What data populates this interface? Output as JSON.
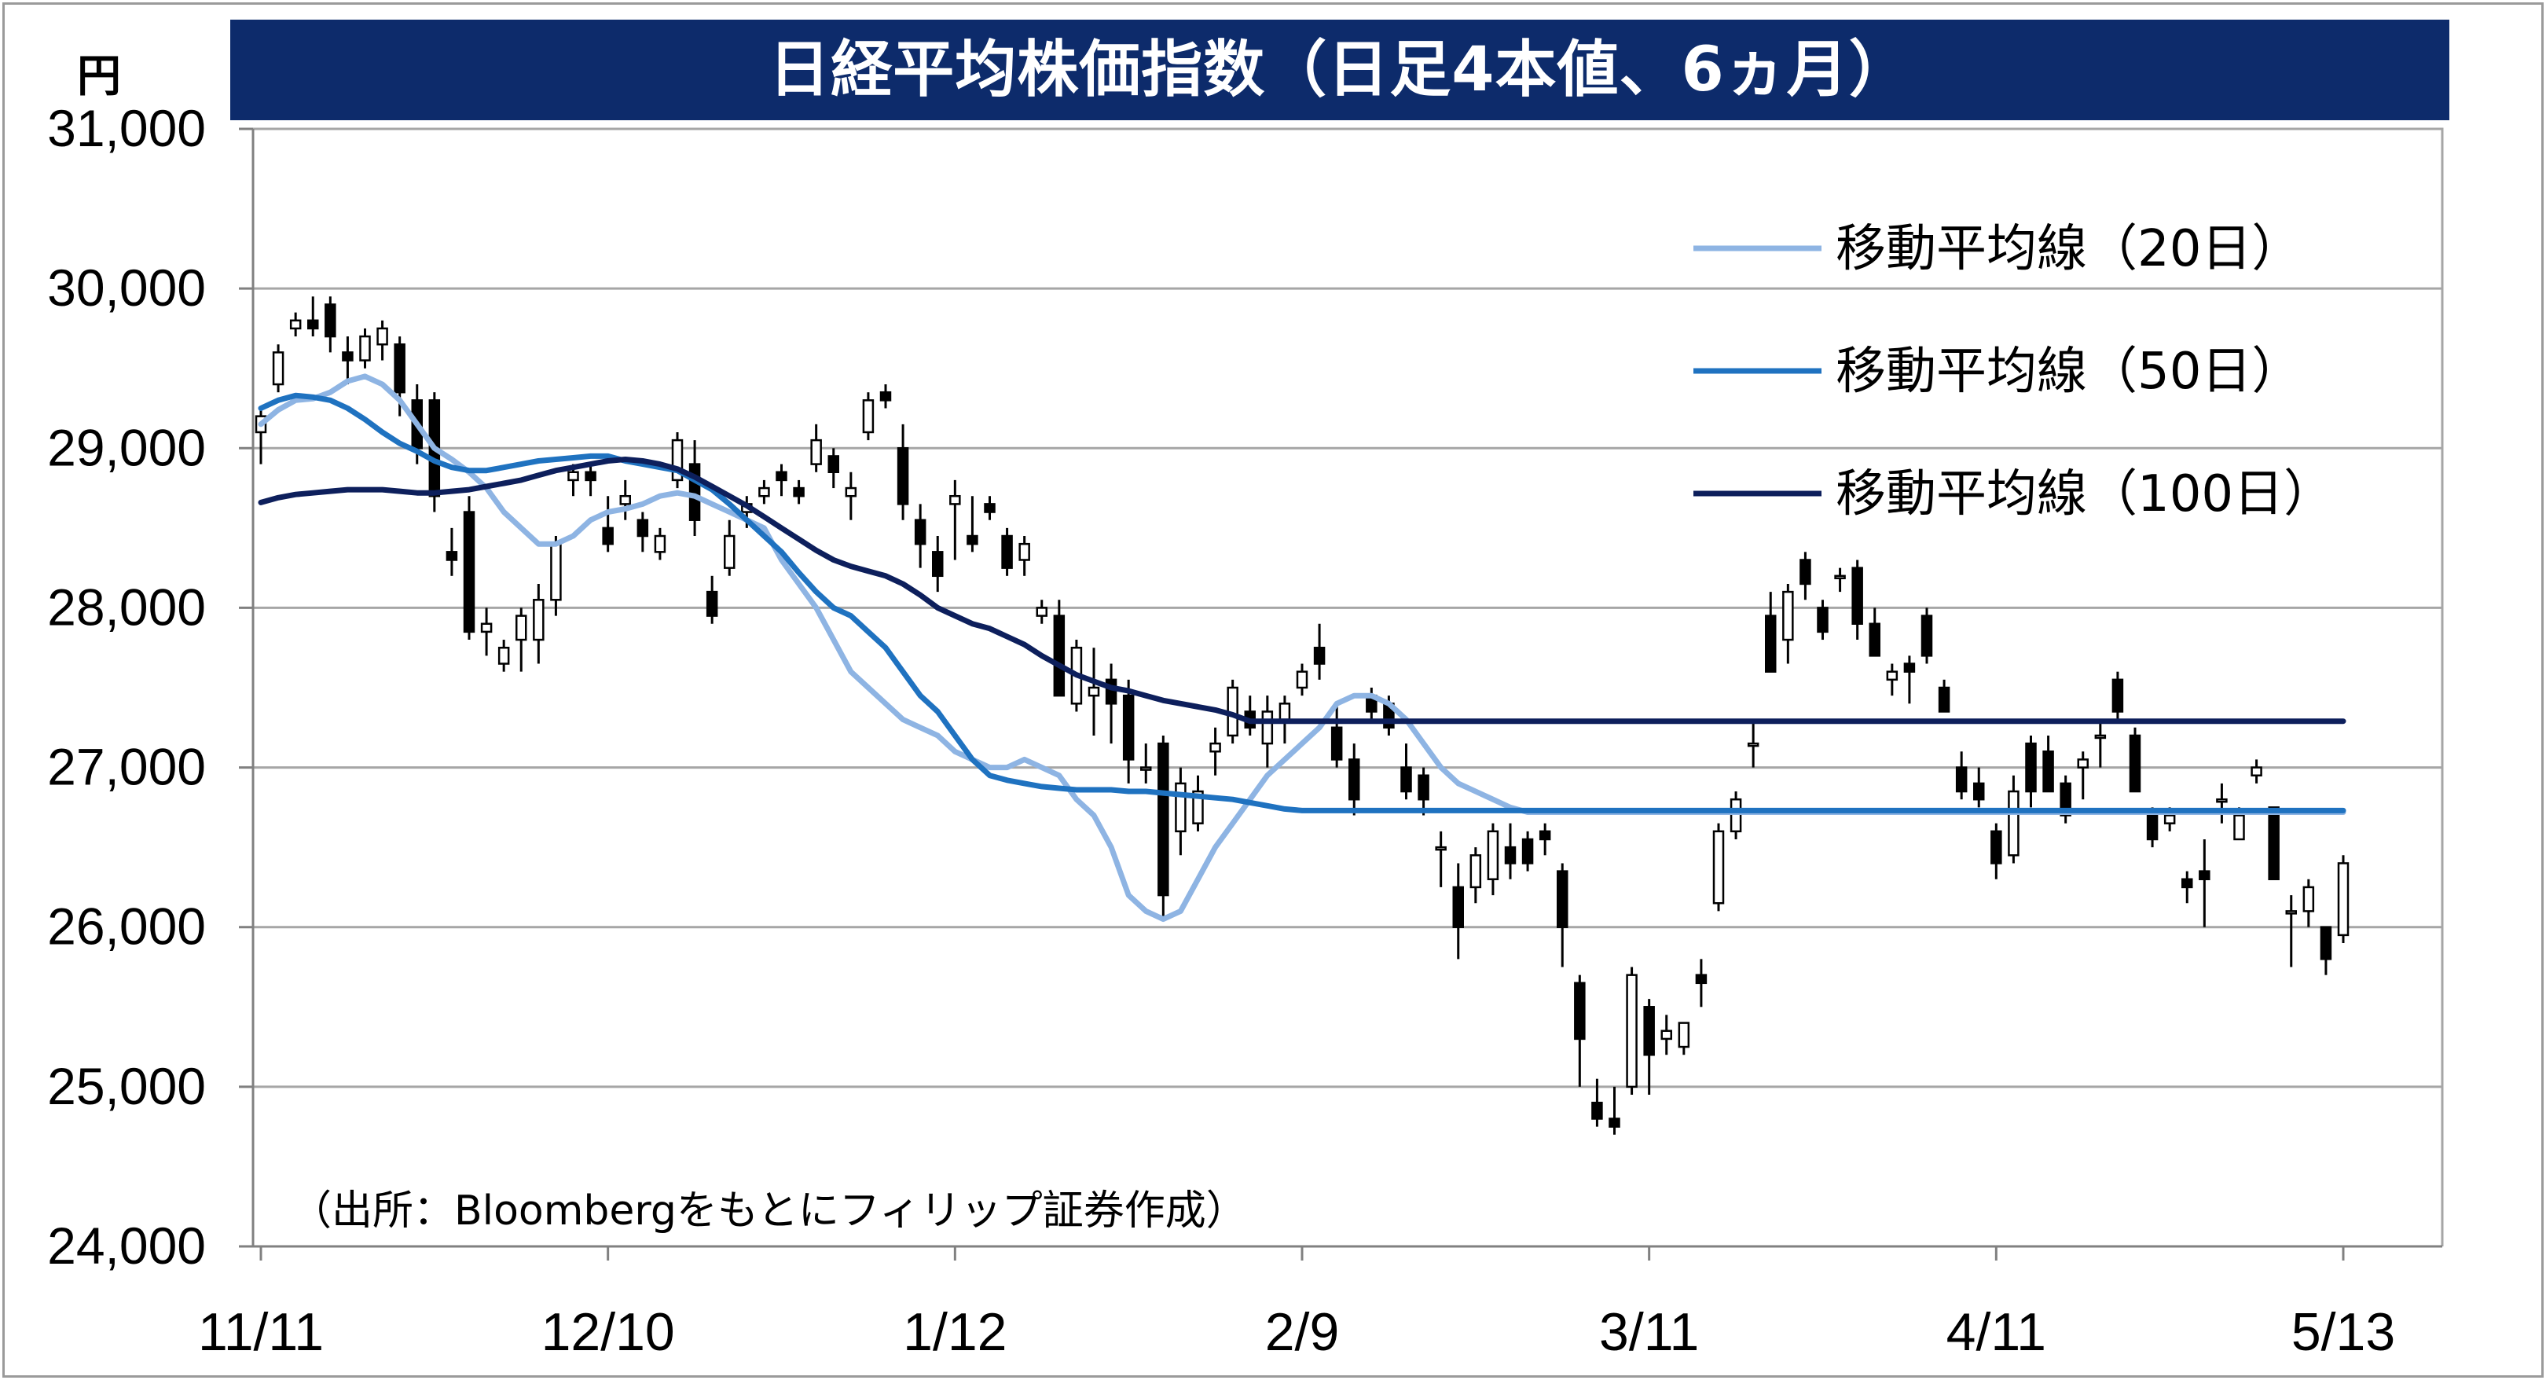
{
  "title": "日経平均株価指数（日足4本値、6ヵ月）",
  "y_unit": "円",
  "source": "（出所：Bloombergをもとにフィリップ証券作成）",
  "chart_data": {
    "type": "candlestick",
    "title": "日経平均株価指数（日足4本値、6ヵ月）",
    "ylabel": "円",
    "ylim": [
      24000,
      31000
    ],
    "yticks": [
      "31,000",
      "30,000",
      "29,000",
      "28,000",
      "27,000",
      "26,000",
      "25,000",
      "24,000"
    ],
    "ytick_values": [
      31000,
      30000,
      29000,
      28000,
      27000,
      26000,
      25000,
      24000
    ],
    "xticks": [
      "11/11",
      "12/10",
      "1/12",
      "2/9",
      "3/11",
      "4/11",
      "5/13"
    ],
    "xtick_indices": [
      0,
      20,
      40,
      60,
      80,
      100,
      120
    ],
    "grid": true,
    "legend_position": "top-right",
    "colors": {
      "up": "#ffffff",
      "down": "#000000",
      "grid": "#a6a6a6",
      "title_bg": "#0d2b6b"
    },
    "series": [
      {
        "name": "移動平均線（20日）",
        "color": "#8eb4e3",
        "values": [
          29150,
          29240,
          29300,
          29310,
          29350,
          29420,
          29450,
          29400,
          29300,
          29150,
          29000,
          28930,
          28850,
          28750,
          28600,
          28500,
          28400,
          28400,
          28450,
          28550,
          28600,
          28620,
          28650,
          28700,
          28720,
          28700,
          28650,
          28600,
          28550,
          28500,
          28300,
          28150,
          28000,
          27800,
          27600,
          27500,
          27400,
          27300,
          27250,
          27200,
          27100,
          27050,
          27000,
          27000,
          27050,
          27000,
          26950,
          26800,
          26700,
          26500,
          26200,
          26100,
          26050,
          26100,
          26300,
          26500,
          26650,
          26800,
          26950,
          27050,
          27150,
          27250,
          27400,
          27450,
          27450,
          27400,
          27300,
          27150,
          27000,
          26900,
          26850,
          26800,
          26750,
          26720,
          26720,
          26720,
          26720,
          26720,
          26720,
          26720,
          26720,
          26720,
          26720,
          26720,
          26720,
          26720,
          26720,
          26720,
          26720,
          26720,
          26720,
          26720,
          26720,
          26720,
          26720,
          26720,
          26720,
          26720,
          26720,
          26720,
          26720,
          26720,
          26720,
          26720,
          26720,
          26720,
          26720,
          26720,
          26720,
          26720,
          26720,
          26720,
          26720,
          26720,
          26720,
          26720,
          26720,
          26720,
          26720,
          26720,
          26720
        ]
      },
      {
        "name": "移動平均線（50日）",
        "color": "#1f72c0",
        "values": [
          29250,
          29300,
          29330,
          29320,
          29300,
          29250,
          29180,
          29100,
          29030,
          28980,
          28920,
          28880,
          28860,
          28860,
          28880,
          28900,
          28920,
          28930,
          28940,
          28950,
          28950,
          28920,
          28900,
          28880,
          28860,
          28800,
          28740,
          28650,
          28550,
          28450,
          28350,
          28220,
          28100,
          28000,
          27950,
          27850,
          27750,
          27600,
          27450,
          27350,
          27200,
          27050,
          26950,
          26920,
          26900,
          26880,
          26870,
          26860,
          26860,
          26860,
          26850,
          26850,
          26840,
          26830,
          26820,
          26810,
          26800,
          26780,
          26760,
          26740,
          26730,
          26730,
          26730,
          26730,
          26730,
          26730,
          26730,
          26730,
          26730,
          26730,
          26730,
          26730,
          26730,
          26730,
          26730,
          26730,
          26730,
          26730,
          26730,
          26730,
          26730,
          26730,
          26730,
          26730,
          26730,
          26730,
          26730,
          26730,
          26730,
          26730,
          26730,
          26730,
          26730,
          26730,
          26730,
          26730,
          26730,
          26730,
          26730,
          26730,
          26730,
          26730,
          26730,
          26730,
          26730,
          26730,
          26730,
          26730,
          26730,
          26730,
          26730,
          26730,
          26730,
          26730,
          26730,
          26730,
          26730,
          26730,
          26730,
          26730,
          26730
        ]
      },
      {
        "name": "移動平均線（100日）",
        "color": "#0d1f5c",
        "values": [
          28660,
          28690,
          28710,
          28720,
          28730,
          28740,
          28740,
          28740,
          28730,
          28720,
          28720,
          28730,
          28740,
          28760,
          28780,
          28800,
          28830,
          28860,
          28880,
          28900,
          28920,
          28930,
          28920,
          28900,
          28870,
          28820,
          28760,
          28700,
          28640,
          28570,
          28500,
          28430,
          28360,
          28300,
          28260,
          28230,
          28200,
          28150,
          28080,
          28000,
          27950,
          27900,
          27870,
          27820,
          27770,
          27700,
          27640,
          27580,
          27540,
          27500,
          27480,
          27450,
          27420,
          27400,
          27380,
          27360,
          27330,
          27290,
          27290,
          27290,
          27290,
          27290,
          27290,
          27290,
          27290,
          27290,
          27290,
          27290,
          27290,
          27290,
          27290,
          27290,
          27290,
          27290,
          27290,
          27290,
          27290,
          27290,
          27290,
          27290,
          27290,
          27290,
          27290,
          27290,
          27290,
          27290,
          27290,
          27290,
          27290,
          27290,
          27290,
          27290,
          27290,
          27290,
          27290,
          27290,
          27290,
          27290,
          27290,
          27290,
          27290,
          27290,
          27290,
          27290,
          27290,
          27290,
          27290,
          27290,
          27290,
          27290,
          27290,
          27290,
          27290,
          27290,
          27290,
          27290,
          27290,
          27290,
          27290,
          27290,
          27290
        ]
      }
    ],
    "candles": [
      [
        29100,
        29250,
        28900,
        29200
      ],
      [
        29400,
        29650,
        29350,
        29600
      ],
      [
        29750,
        29850,
        29700,
        29800
      ],
      [
        29800,
        29950,
        29700,
        29750
      ],
      [
        29900,
        29950,
        29600,
        29700
      ],
      [
        29600,
        29700,
        29400,
        29550
      ],
      [
        29550,
        29750,
        29500,
        29700
      ],
      [
        29650,
        29800,
        29550,
        29750
      ],
      [
        29650,
        29700,
        29200,
        29350
      ],
      [
        29300,
        29400,
        28900,
        29000
      ],
      [
        29300,
        29350,
        28600,
        28700
      ],
      [
        28350,
        28500,
        28200,
        28300
      ],
      [
        28600,
        28700,
        27800,
        27850
      ],
      [
        27850,
        28000,
        27700,
        27900
      ],
      [
        27650,
        27800,
        27600,
        27750
      ],
      [
        27800,
        28000,
        27600,
        27950
      ],
      [
        27800,
        28150,
        27650,
        28050
      ],
      [
        28050,
        28450,
        27950,
        28400
      ],
      [
        28800,
        28900,
        28700,
        28850
      ],
      [
        28850,
        28900,
        28700,
        28800
      ],
      [
        28500,
        28700,
        28350,
        28400
      ],
      [
        28650,
        28800,
        28550,
        28700
      ],
      [
        28550,
        28600,
        28350,
        28450
      ],
      [
        28350,
        28500,
        28300,
        28450
      ],
      [
        28800,
        29100,
        28750,
        29050
      ],
      [
        28900,
        29050,
        28450,
        28550
      ],
      [
        28100,
        28200,
        27900,
        27950
      ],
      [
        28250,
        28550,
        28200,
        28450
      ],
      [
        28600,
        28700,
        28500,
        28650
      ],
      [
        28700,
        28800,
        28650,
        28750
      ],
      [
        28850,
        28900,
        28700,
        28800
      ],
      [
        28750,
        28800,
        28650,
        28700
      ],
      [
        28900,
        29150,
        28850,
        29050
      ],
      [
        28950,
        29000,
        28750,
        28850
      ],
      [
        28700,
        28850,
        28550,
        28750
      ],
      [
        29100,
        29350,
        29050,
        29300
      ],
      [
        29350,
        29400,
        29250,
        29300
      ],
      [
        29000,
        29150,
        28550,
        28650
      ],
      [
        28550,
        28650,
        28250,
        28400
      ],
      [
        28350,
        28450,
        28100,
        28200
      ],
      [
        28650,
        28800,
        28300,
        28700
      ],
      [
        28450,
        28700,
        28350,
        28400
      ],
      [
        28650,
        28700,
        28550,
        28600
      ],
      [
        28450,
        28500,
        28200,
        28250
      ],
      [
        28300,
        28450,
        28200,
        28400
      ],
      [
        27950,
        28050,
        27900,
        28000
      ],
      [
        27950,
        28050,
        27450,
        27450
      ],
      [
        27400,
        27800,
        27350,
        27750
      ],
      [
        27450,
        27750,
        27200,
        27500
      ],
      [
        27550,
        27650,
        27150,
        27400
      ],
      [
        27450,
        27550,
        26900,
        27050
      ],
      [
        27000,
        27150,
        26900,
        27000
      ],
      [
        27150,
        27200,
        26050,
        26200
      ],
      [
        26600,
        27000,
        26450,
        26900
      ],
      [
        26650,
        26950,
        26600,
        26850
      ],
      [
        27100,
        27250,
        26950,
        27150
      ],
      [
        27200,
        27550,
        27150,
        27500
      ],
      [
        27350,
        27450,
        27200,
        27250
      ],
      [
        27150,
        27450,
        27000,
        27350
      ],
      [
        27300,
        27450,
        27150,
        27400
      ],
      [
        27500,
        27650,
        27450,
        27600
      ],
      [
        27750,
        27900,
        27550,
        27650
      ],
      [
        27250,
        27400,
        27000,
        27050
      ],
      [
        27050,
        27150,
        26700,
        26800
      ],
      [
        27450,
        27500,
        27300,
        27350
      ],
      [
        27400,
        27450,
        27200,
        27250
      ],
      [
        27000,
        27150,
        26800,
        26850
      ],
      [
        26950,
        27000,
        26700,
        26800
      ],
      [
        26500,
        26600,
        26250,
        26500
      ],
      [
        26250,
        26400,
        25800,
        26000
      ],
      [
        26250,
        26500,
        26150,
        26450
      ],
      [
        26300,
        26650,
        26200,
        26600
      ],
      [
        26500,
        26650,
        26300,
        26400
      ],
      [
        26550,
        26600,
        26350,
        26400
      ],
      [
        26600,
        26650,
        26450,
        26550
      ],
      [
        26350,
        26400,
        25750,
        26000
      ],
      [
        25650,
        25700,
        25000,
        25300
      ],
      [
        24900,
        25050,
        24750,
        24800
      ],
      [
        24800,
        25000,
        24700,
        24750
      ],
      [
        25000,
        25750,
        24950,
        25700
      ],
      [
        25500,
        25550,
        24950,
        25200
      ],
      [
        25300,
        25450,
        25200,
        25350
      ],
      [
        25250,
        25400,
        25200,
        25400
      ],
      [
        25700,
        25800,
        25500,
        25650
      ],
      [
        26150,
        26650,
        26100,
        26600
      ],
      [
        26600,
        26850,
        26550,
        26800
      ],
      [
        27150,
        27300,
        27000,
        27150
      ],
      [
        27950,
        28100,
        27600,
        27600
      ],
      [
        27800,
        28150,
        27650,
        28100
      ],
      [
        28300,
        28350,
        28050,
        28150
      ],
      [
        28000,
        28050,
        27800,
        27850
      ],
      [
        28200,
        28250,
        28100,
        28200
      ],
      [
        28250,
        28300,
        27800,
        27900
      ],
      [
        27900,
        28000,
        27700,
        27700
      ],
      [
        27550,
        27650,
        27450,
        27600
      ],
      [
        27650,
        27700,
        27400,
        27600
      ],
      [
        27950,
        28000,
        27650,
        27700
      ],
      [
        27500,
        27550,
        27350,
        27350
      ],
      [
        27000,
        27100,
        26800,
        26850
      ],
      [
        26900,
        27000,
        26750,
        26800
      ],
      [
        26600,
        26650,
        26300,
        26400
      ],
      [
        26450,
        26950,
        26400,
        26850
      ],
      [
        27150,
        27200,
        26750,
        26850
      ],
      [
        27100,
        27200,
        26850,
        26850
      ],
      [
        26900,
        26950,
        26650,
        26700
      ],
      [
        27000,
        27100,
        26800,
        27050
      ],
      [
        27200,
        27300,
        27000,
        27200
      ],
      [
        27550,
        27600,
        27300,
        27350
      ],
      [
        27200,
        27250,
        26850,
        26850
      ],
      [
        26700,
        26750,
        26500,
        26550
      ],
      [
        26650,
        26750,
        26600,
        26700
      ],
      [
        26300,
        26350,
        26150,
        26250
      ],
      [
        26350,
        26550,
        26000,
        26300
      ],
      [
        26800,
        26900,
        26650,
        26800
      ],
      [
        26550,
        26750,
        26550,
        26700
      ],
      [
        26950,
        27050,
        26900,
        27000
      ],
      [
        26750,
        26750,
        26300,
        26300
      ],
      [
        26100,
        26200,
        25750,
        26100
      ],
      [
        26100,
        26300,
        26000,
        26250
      ],
      [
        26000,
        26000,
        25700,
        25800
      ],
      [
        25950,
        26450,
        25900,
        26400
      ]
    ]
  }
}
